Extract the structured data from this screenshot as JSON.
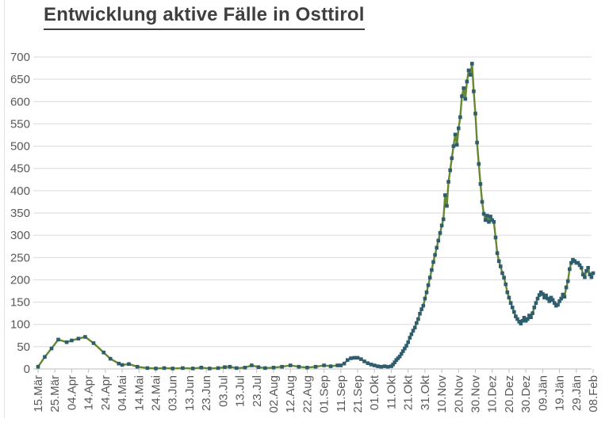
{
  "page": {
    "title": "Entwicklung aktive Fälle in Osttirol"
  },
  "chart_data": {
    "type": "line",
    "title": "Entwicklung aktive Fälle in Osttirol",
    "xlabel": "",
    "ylabel": "",
    "legend": "none",
    "grid": "horizontal",
    "ylim": [
      0,
      700
    ],
    "y_tick_step": 50,
    "y_tick_labels": [
      "0",
      "50",
      "100",
      "150",
      "200",
      "250",
      "300",
      "350",
      "400",
      "450",
      "500",
      "550",
      "600",
      "650",
      "700"
    ],
    "x_unit": "date (daily data, labels every 10 days)",
    "x_day_range": [
      0,
      330
    ],
    "x_tick_interval_days": 10,
    "x_tick_labels": [
      "15.Mär",
      "25.Mär",
      "04.Apr",
      "14.Apr",
      "24.Apr",
      "04.Mai",
      "14.Mai",
      "24.Mai",
      "03.Jun",
      "13.Jun",
      "23.Jun",
      "03.Jul",
      "13.Jul",
      "23.Jul",
      "02.Aug",
      "12.Aug",
      "22.Aug",
      "01.Sep",
      "11.Sep",
      "21.Sep",
      "01.Okt",
      "11.Okt",
      "21.Okt",
      "31.Okt",
      "10.Nov",
      "20.Nov",
      "30.Nov",
      "10.Dez",
      "20.Dez",
      "30.Dez",
      "09.Jän",
      "19.Jän",
      "29.Jän",
      "08.Feb"
    ],
    "series": [
      {
        "name": "aktive Fälle",
        "marker": "square",
        "line_color": "#66882f",
        "marker_color": "#2e5d6e",
        "points_day_value": [
          [
            0,
            5
          ],
          [
            4,
            27
          ],
          [
            8,
            46
          ],
          [
            12,
            66
          ],
          [
            17,
            60
          ],
          [
            20,
            64
          ],
          [
            24,
            68
          ],
          [
            28,
            72
          ],
          [
            33,
            58
          ],
          [
            39,
            37
          ],
          [
            43,
            23
          ],
          [
            48,
            12
          ],
          [
            50,
            9
          ],
          [
            54,
            11
          ],
          [
            59,
            5
          ],
          [
            65,
            2
          ],
          [
            70,
            1
          ],
          [
            75,
            2
          ],
          [
            80,
            1
          ],
          [
            86,
            2
          ],
          [
            92,
            1
          ],
          [
            97,
            3
          ],
          [
            102,
            1
          ],
          [
            107,
            2
          ],
          [
            111,
            4
          ],
          [
            114,
            5
          ],
          [
            118,
            2
          ],
          [
            123,
            3
          ],
          [
            127,
            8
          ],
          [
            131,
            4
          ],
          [
            135,
            2
          ],
          [
            140,
            3
          ],
          [
            145,
            5
          ],
          [
            150,
            8
          ],
          [
            155,
            5
          ],
          [
            160,
            3
          ],
          [
            165,
            5
          ],
          [
            170,
            8
          ],
          [
            174,
            6
          ],
          [
            178,
            8
          ],
          [
            180,
            8
          ],
          [
            182,
            12
          ],
          [
            184,
            20
          ],
          [
            186,
            24
          ],
          [
            188,
            25
          ],
          [
            190,
            25
          ],
          [
            192,
            22
          ],
          [
            194,
            17
          ],
          [
            196,
            13
          ],
          [
            198,
            10
          ],
          [
            200,
            8
          ],
          [
            202,
            6
          ],
          [
            204,
            5
          ],
          [
            206,
            6
          ],
          [
            208,
            5
          ],
          [
            210,
            6
          ],
          [
            211,
            10
          ],
          [
            212,
            15
          ],
          [
            213,
            20
          ],
          [
            214,
            24
          ],
          [
            215,
            28
          ],
          [
            216,
            34
          ],
          [
            217,
            40
          ],
          [
            218,
            46
          ],
          [
            219,
            52
          ],
          [
            220,
            60
          ],
          [
            221,
            70
          ],
          [
            222,
            78
          ],
          [
            223,
            86
          ],
          [
            224,
            93
          ],
          [
            225,
            103
          ],
          [
            226,
            112
          ],
          [
            227,
            124
          ],
          [
            228,
            134
          ],
          [
            229,
            142
          ],
          [
            230,
            158
          ],
          [
            231,
            172
          ],
          [
            232,
            188
          ],
          [
            233,
            205
          ],
          [
            234,
            222
          ],
          [
            235,
            240
          ],
          [
            236,
            256
          ],
          [
            237,
            272
          ],
          [
            238,
            288
          ],
          [
            239,
            305
          ],
          [
            240,
            322
          ],
          [
            241,
            336
          ],
          [
            242,
            390
          ],
          [
            243,
            366
          ],
          [
            244,
            420
          ],
          [
            245,
            446
          ],
          [
            246,
            473
          ],
          [
            247,
            500
          ],
          [
            248,
            526
          ],
          [
            249,
            503
          ],
          [
            250,
            540
          ],
          [
            251,
            565
          ],
          [
            252,
            612
          ],
          [
            253,
            630
          ],
          [
            254,
            606
          ],
          [
            255,
            645
          ],
          [
            256,
            670
          ],
          [
            257,
            660
          ],
          [
            258,
            685
          ],
          [
            259,
            623
          ],
          [
            260,
            573
          ],
          [
            261,
            508
          ],
          [
            262,
            460
          ],
          [
            263,
            415
          ],
          [
            264,
            375
          ],
          [
            265,
            348
          ],
          [
            266,
            334
          ],
          [
            267,
            344
          ],
          [
            268,
            330
          ],
          [
            269,
            342
          ],
          [
            270,
            334
          ],
          [
            271,
            330
          ],
          [
            272,
            295
          ],
          [
            273,
            260
          ],
          [
            274,
            242
          ],
          [
            275,
            230
          ],
          [
            276,
            215
          ],
          [
            277,
            205
          ],
          [
            278,
            190
          ],
          [
            279,
            172
          ],
          [
            280,
            160
          ],
          [
            281,
            148
          ],
          [
            282,
            138
          ],
          [
            283,
            128
          ],
          [
            284,
            118
          ],
          [
            285,
            112
          ],
          [
            286,
            106
          ],
          [
            287,
            102
          ],
          [
            288,
            108
          ],
          [
            289,
            115
          ],
          [
            290,
            108
          ],
          [
            291,
            112
          ],
          [
            292,
            120
          ],
          [
            293,
            116
          ],
          [
            294,
            125
          ],
          [
            295,
            138
          ],
          [
            296,
            148
          ],
          [
            297,
            158
          ],
          [
            298,
            166
          ],
          [
            299,
            172
          ],
          [
            300,
            168
          ],
          [
            301,
            160
          ],
          [
            302,
            165
          ],
          [
            303,
            158
          ],
          [
            304,
            152
          ],
          [
            305,
            160
          ],
          [
            306,
            155
          ],
          [
            307,
            148
          ],
          [
            308,
            142
          ],
          [
            309,
            144
          ],
          [
            310,
            152
          ],
          [
            311,
            158
          ],
          [
            312,
            167
          ],
          [
            313,
            162
          ],
          [
            314,
            183
          ],
          [
            315,
            197
          ],
          [
            316,
            224
          ],
          [
            317,
            238
          ],
          [
            318,
            245
          ],
          [
            319,
            242
          ],
          [
            320,
            238
          ],
          [
            321,
            238
          ],
          [
            322,
            233
          ],
          [
            323,
            227
          ],
          [
            324,
            212
          ],
          [
            325,
            206
          ],
          [
            326,
            220
          ],
          [
            327,
            227
          ],
          [
            328,
            212
          ],
          [
            329,
            206
          ],
          [
            330,
            215
          ]
        ]
      }
    ]
  },
  "colors": {
    "title_text": "#3f3f3f",
    "axis_label_text": "#595959",
    "gridline": "#d9d9d9",
    "axis_line": "#bfbfbf",
    "tick_mark": "#bfbfbf",
    "background": "#ffffff",
    "page_edge_line": "#e2e2e2",
    "series_line": "#66882f",
    "series_marker": "#2e5d6e"
  }
}
